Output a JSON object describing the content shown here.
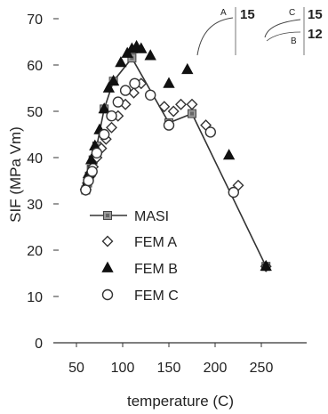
{
  "chart_data": {
    "type": "scatter",
    "xlabel": "temperature (C)",
    "ylabel": "SIF (MPa Vm)",
    "xlim": [
      50,
      275
    ],
    "ylim": [
      0,
      70
    ],
    "x_ticks": [
      50,
      100,
      150,
      200,
      250
    ],
    "y_ticks": [
      0,
      10,
      20,
      30,
      40,
      50,
      60,
      70
    ],
    "legend": "inside-left",
    "series": [
      {
        "name": "MASI",
        "marker": "square",
        "line": true,
        "x": [
          60,
          62,
          64,
          66,
          68,
          72,
          80,
          90,
          110,
          150,
          175,
          255
        ],
        "y": [
          33,
          34.5,
          36,
          37.5,
          39.5,
          42.5,
          50.5,
          56.5,
          61.5,
          47.5,
          49.5,
          16.5
        ]
      },
      {
        "name": "FEM A",
        "marker": "diamond",
        "line": false,
        "x": [
          60,
          62,
          65,
          68,
          72,
          77,
          82,
          88,
          95,
          103,
          112,
          120,
          145,
          155,
          163,
          175,
          190,
          225,
          255
        ],
        "y": [
          33,
          34.5,
          36,
          38,
          40,
          42,
          44,
          46.5,
          49,
          51.5,
          54,
          56,
          51,
          50,
          51.5,
          51.5,
          47,
          34,
          16.5
        ]
      },
      {
        "name": "FEM B",
        "marker": "triangle",
        "line": false,
        "x": [
          60,
          63,
          66,
          70,
          75,
          80,
          85,
          90,
          98,
          105,
          110,
          115,
          120,
          130,
          150,
          170,
          215,
          255
        ],
        "y": [
          34,
          36.5,
          39.5,
          42.5,
          46,
          50.5,
          55,
          56.5,
          60.5,
          62.5,
          63.5,
          64,
          63.5,
          62,
          56,
          59,
          40.5,
          16.5
        ]
      },
      {
        "name": "FEM C",
        "marker": "circle",
        "line": false,
        "x": [
          60,
          63,
          67,
          72,
          80,
          88,
          95,
          103,
          113,
          130,
          150,
          195,
          220
        ],
        "y": [
          33,
          35,
          37,
          41,
          45,
          49,
          52,
          54.5,
          56,
          53.5,
          47,
          45.5,
          32.5
        ]
      }
    ],
    "inset": {
      "left": {
        "label": "A",
        "value": "15"
      },
      "right": {
        "label_top": "C",
        "value_top": "15",
        "label_bottom": "B",
        "value_bottom": "12"
      }
    }
  }
}
